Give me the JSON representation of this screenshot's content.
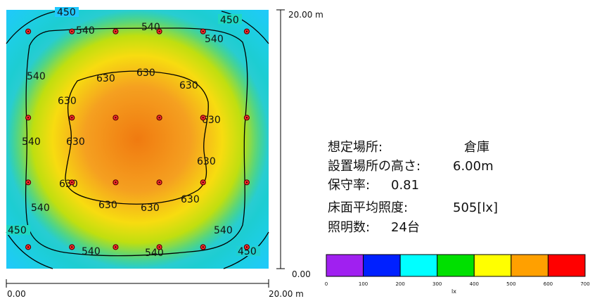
{
  "plot": {
    "x_min_label": "0.00",
    "x_max_label": "20.00 m",
    "y_min_label": "0.00",
    "y_max_label": "20.00 m"
  },
  "info": [
    {
      "label": "想定場所:",
      "value": "倉庫"
    },
    {
      "label": "設置場所の高さ:",
      "value": "6.00m"
    },
    {
      "label": "保守率:",
      "value": "0.81"
    },
    {
      "label": "床面平均照度:",
      "value": "505[lx]"
    },
    {
      "label": "照明数:",
      "value": "24台"
    }
  ],
  "contours": [
    {
      "level": "450",
      "color": "#000000"
    },
    {
      "level": "540",
      "color": "#000000"
    },
    {
      "level": "630",
      "color": "#000000"
    }
  ],
  "luminaires": [
    [
      1,
      1
    ],
    [
      3,
      1
    ],
    [
      5,
      1
    ],
    [
      7,
      1
    ],
    [
      9,
      1
    ],
    [
      11,
      1
    ],
    [
      1,
      5
    ],
    [
      5,
      5
    ],
    [
      7,
      5
    ],
    [
      11,
      5
    ],
    [
      1,
      8
    ],
    [
      5,
      8
    ],
    [
      7,
      8
    ],
    [
      11,
      8
    ],
    [
      1,
      11
    ],
    [
      3,
      11
    ],
    [
      5,
      11
    ],
    [
      7,
      11
    ],
    [
      9,
      11
    ],
    [
      11,
      11
    ],
    [
      3,
      5
    ],
    [
      9,
      5
    ],
    [
      3,
      8
    ],
    [
      9,
      8
    ]
  ],
  "colorbar": {
    "unit": "lx",
    "ticks": [
      "0",
      "100",
      "200",
      "300",
      "400",
      "500",
      "600",
      "700"
    ],
    "colors": [
      "#a020f0",
      "#0020ff",
      "#00ffff",
      "#00e000",
      "#ffff00",
      "#ffa000",
      "#ff0000"
    ]
  }
}
